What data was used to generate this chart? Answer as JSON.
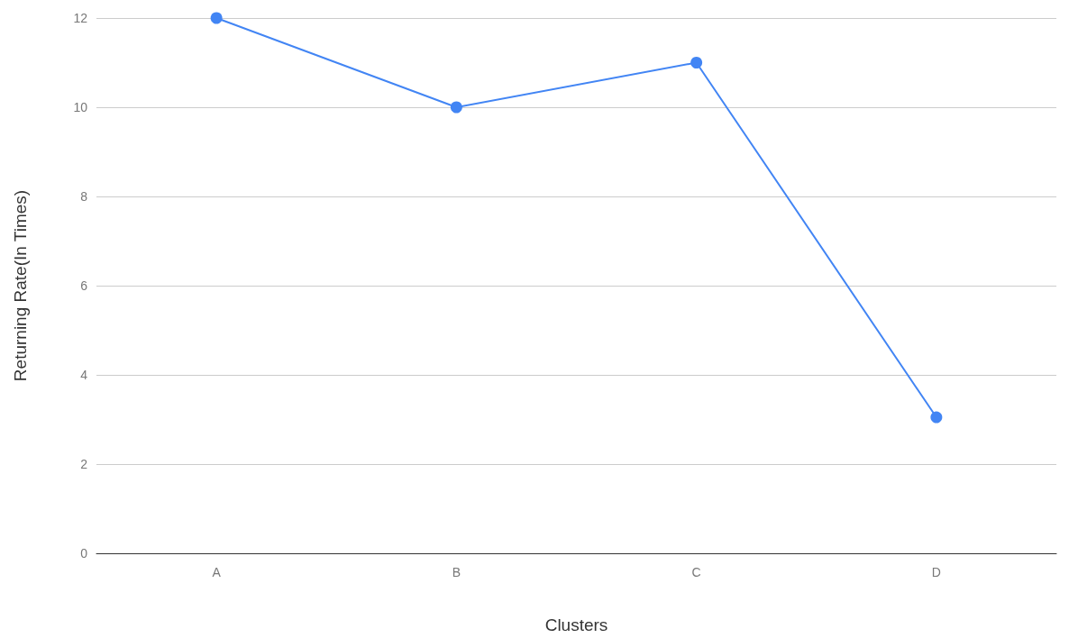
{
  "chart_data": {
    "type": "line",
    "xlabel": "Clusters",
    "ylabel": "Returning Rate(In Times)",
    "categories": [
      "A",
      "B",
      "C",
      "D"
    ],
    "series": [
      {
        "color": "#4285f4",
        "values": [
          12,
          10,
          11,
          3.05
        ]
      }
    ],
    "ylim": [
      0,
      12
    ],
    "yticks": [
      0,
      2,
      4,
      6,
      8,
      10,
      12
    ],
    "grid": "y",
    "marker": "circle",
    "line_style": "solid"
  }
}
